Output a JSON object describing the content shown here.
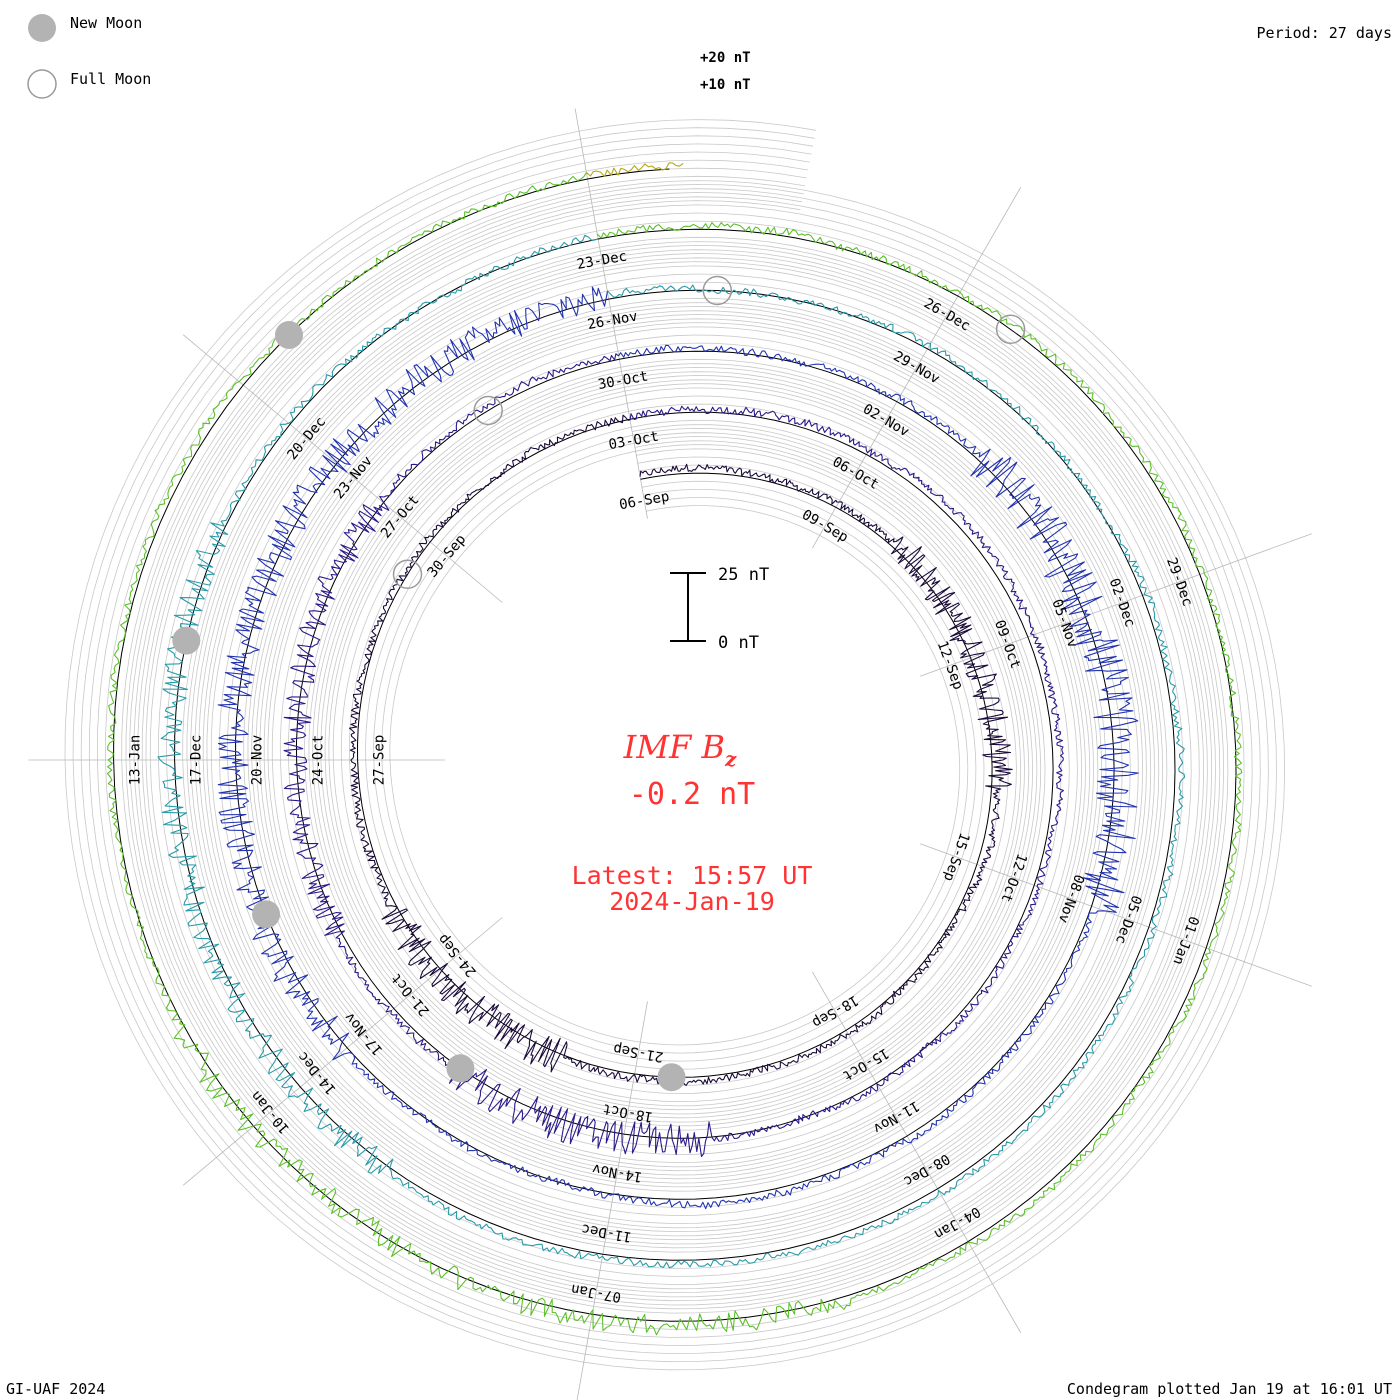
{
  "legend": {
    "new_moon_label": "New Moon",
    "full_moon_label": "Full Moon",
    "new_moon_color": "#b3b3b3",
    "full_moon_color": "#9a9a9a"
  },
  "header": {
    "period": "Period: 27 days"
  },
  "footer": {
    "credit": "GI-UAF 2024",
    "plotted": "Condegram plotted Jan 19 at 16:01 UT"
  },
  "center": {
    "title_main": "IMF B",
    "title_sub": "z",
    "value": "-0.2 nT",
    "latest_time": "Latest: 15:57 UT",
    "latest_date": "2024-Jan-19",
    "text_color": "#ff3333"
  },
  "scale_bar": {
    "top_label": "25 nT",
    "bottom_label": "0 nT"
  },
  "chart_data": {
    "type": "line",
    "subtype": "condegram-spiral",
    "quantity": "IMF Bz",
    "unit": "nT",
    "period_days": 27,
    "start_date": "2023-Sep-06",
    "end_date": "2024-Jan-19",
    "latest_value": -0.2,
    "ring_labels": [
      "+20 nT",
      "+10 nT"
    ],
    "grid": true,
    "cycle_colors": [
      "#1a0a3a",
      "#2a1a8a",
      "#2233b0",
      "#2a9aa8",
      "#5cc02a",
      "#b8a818",
      "#c0600a",
      "#a81a0a"
    ],
    "date_labels": [
      {
        "label": "06-Sep",
        "day": 0
      },
      {
        "label": "09-Sep",
        "day": 3
      },
      {
        "label": "12-Sep",
        "day": 6
      },
      {
        "label": "15-Sep",
        "day": 9
      },
      {
        "label": "18-Sep",
        "day": 12
      },
      {
        "label": "21-Sep",
        "day": 15
      },
      {
        "label": "24-Sep",
        "day": 18
      },
      {
        "label": "27-Sep",
        "day": 21
      },
      {
        "label": "30-Sep",
        "day": 24
      },
      {
        "label": "03-Oct",
        "day": 27
      },
      {
        "label": "06-Oct",
        "day": 30
      },
      {
        "label": "09-Oct",
        "day": 33
      },
      {
        "label": "12-Oct",
        "day": 36
      },
      {
        "label": "15-Oct",
        "day": 39
      },
      {
        "label": "18-Oct",
        "day": 42
      },
      {
        "label": "21-Oct",
        "day": 45
      },
      {
        "label": "24-Oct",
        "day": 48
      },
      {
        "label": "27-Oct",
        "day": 51
      },
      {
        "label": "30-Oct",
        "day": 54
      },
      {
        "label": "02-Nov",
        "day": 57
      },
      {
        "label": "05-Nov",
        "day": 60
      },
      {
        "label": "08-Nov",
        "day": 63
      },
      {
        "label": "11-Nov",
        "day": 66
      },
      {
        "label": "14-Nov",
        "day": 69
      },
      {
        "label": "17-Nov",
        "day": 72
      },
      {
        "label": "20-Nov",
        "day": 75
      },
      {
        "label": "23-Nov",
        "day": 78
      },
      {
        "label": "26-Nov",
        "day": 81
      },
      {
        "label": "29-Nov",
        "day": 84
      },
      {
        "label": "02-Dec",
        "day": 87
      },
      {
        "label": "05-Dec",
        "day": 90
      },
      {
        "label": "08-Dec",
        "day": 93
      },
      {
        "label": "11-Dec",
        "day": 96
      },
      {
        "label": "14-Dec",
        "day": 99
      },
      {
        "label": "17-Dec",
        "day": 102
      },
      {
        "label": "20-Dec",
        "day": 105
      },
      {
        "label": "23-Dec",
        "day": 108
      },
      {
        "label": "26-Dec",
        "day": 111
      },
      {
        "label": "29-Dec",
        "day": 114
      },
      {
        "label": "01-Jan",
        "day": 117
      },
      {
        "label": "04-Jan",
        "day": 120
      },
      {
        "label": "07-Jan",
        "day": 123
      },
      {
        "label": "10-Jan",
        "day": 126
      },
      {
        "label": "13-Jan",
        "day": 129
      }
    ],
    "new_moons": [
      14.5,
      44,
      73.5,
      103,
      132.5
    ],
    "full_moons": [
      23.5,
      52.5,
      82,
      111.5
    ],
    "series_description": "IMF Bz traced along a spiral; one revolution per 27 days; larger excursions inward/outward correspond to negative/positive Bz",
    "disturbed_intervals": [
      {
        "start": 4,
        "end": 8,
        "amplitude": 10
      },
      {
        "start": 16,
        "end": 19,
        "amplitude": 12
      },
      {
        "start": 41,
        "end": 44,
        "amplitude": 12
      },
      {
        "start": 46,
        "end": 51,
        "amplitude": 9
      },
      {
        "start": 58,
        "end": 63,
        "amplitude": 15
      },
      {
        "start": 72,
        "end": 81,
        "amplitude": 11
      },
      {
        "start": 98,
        "end": 104,
        "amplitude": 9
      },
      {
        "start": 121,
        "end": 127,
        "amplitude": 8
      }
    ]
  }
}
